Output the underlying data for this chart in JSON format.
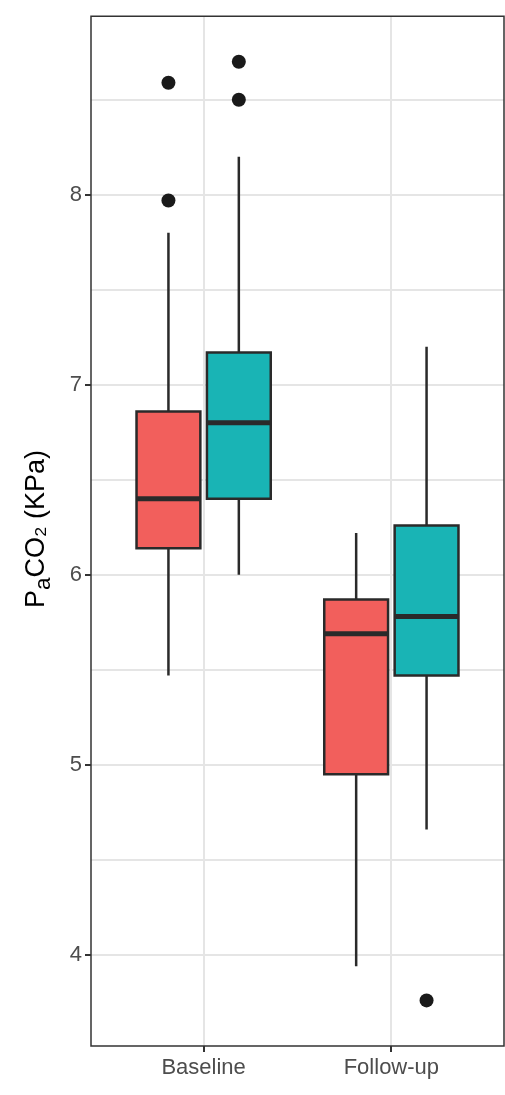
{
  "chart_data": {
    "type": "box",
    "ylabel": "P$_{a}$CO₂ (KPa)",
    "categories": [
      "Baseline",
      "Follow-up"
    ],
    "series": [
      {
        "color": "#f25f5c",
        "boxes": [
          {
            "low": 5.47,
            "q1": 6.14,
            "median": 6.4,
            "q3": 6.86,
            "high": 7.8,
            "outliers": [
              8.59,
              7.97
            ]
          },
          {
            "low": 3.94,
            "q1": 4.95,
            "median": 5.69,
            "q3": 5.87,
            "high": 6.22
          }
        ]
      },
      {
        "color": "#19b4b5",
        "boxes": [
          {
            "low": 6.0,
            "q1": 6.4,
            "median": 6.8,
            "q3": 7.17,
            "high": 8.2,
            "outliers": [
              8.7,
              8.5
            ]
          },
          {
            "low": 4.66,
            "q1": 5.47,
            "median": 5.78,
            "q3": 6.26,
            "high": 7.2,
            "outliers": [
              3.76
            ]
          }
        ]
      }
    ],
    "ylim": [
      3.52,
      8.94
    ],
    "yticks": [
      4,
      {
        "value": 4.5,
        "label": null
      },
      5,
      {
        "value": 5.5,
        "label": null
      },
      6,
      {
        "value": 6.5,
        "label": null
      },
      7,
      {
        "value": 7.5,
        "label": null
      },
      8,
      {
        "value": 8.5,
        "label": null
      }
    ],
    "grid": true
  }
}
